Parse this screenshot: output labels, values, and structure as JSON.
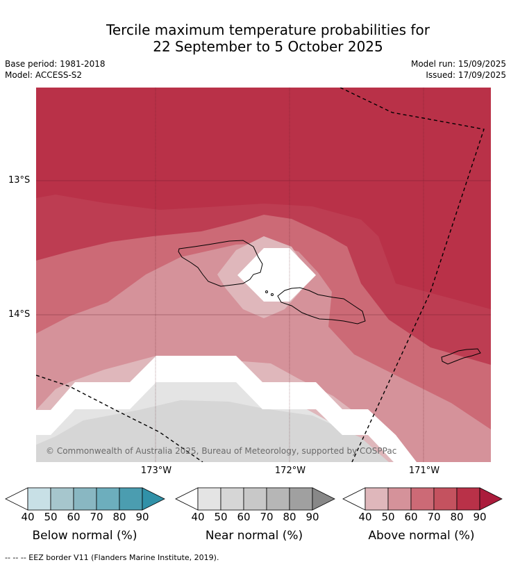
{
  "title": {
    "line1": "Tercile maximum temperature probabilities for",
    "line2": "22 September to 5 October 2025"
  },
  "meta": {
    "base_period": "Base period: 1981-2018",
    "model": "Model: ACCESS-S2",
    "model_run": "Model run: 15/09/2025",
    "issued": "Issued: 17/09/2025"
  },
  "axes": {
    "lat_labels": [
      "13°S",
      "14°S"
    ],
    "lon_labels": [
      "173°W",
      "172°W",
      "171°W"
    ]
  },
  "map": {
    "copyright": "© Commonwealth of Australia 2025, Bureau of Meteorology, supported by COSPPac",
    "colors": {
      "above_90": "#b93148",
      "above_80": "#bd3d52",
      "above_70": "#cc6a76",
      "above_60": "#d5929a",
      "above_50": "#dfb7bb",
      "near_50": "#e4e4e4",
      "near_60": "#d6d6d6",
      "white": "#ffffff"
    }
  },
  "colorbars": [
    {
      "name": "Below normal (%)",
      "ticks": [
        "40",
        "50",
        "60",
        "70",
        "80",
        "90"
      ],
      "colors": [
        "#c8e0e6",
        "#a6c6cd",
        "#89b7c2",
        "#6daebd",
        "#4b9db0",
        "#3191a8"
      ]
    },
    {
      "name": "Near normal (%)",
      "ticks": [
        "40",
        "50",
        "60",
        "70",
        "80",
        "90"
      ],
      "colors": [
        "#e4e4e4",
        "#d6d6d6",
        "#c8c8c8",
        "#b6b6b6",
        "#a0a0a0",
        "#888888"
      ]
    },
    {
      "name": "Above normal (%)",
      "ticks": [
        "40",
        "50",
        "60",
        "70",
        "80",
        "90"
      ],
      "colors": [
        "#dfb7bb",
        "#d5929a",
        "#cc6a76",
        "#c4525f",
        "#b93148",
        "#ab1c3c"
      ]
    }
  ],
  "footer": {
    "eez_legend": "--  --  -- EEZ border V11 (Flanders Marine Institute, 2019)."
  }
}
